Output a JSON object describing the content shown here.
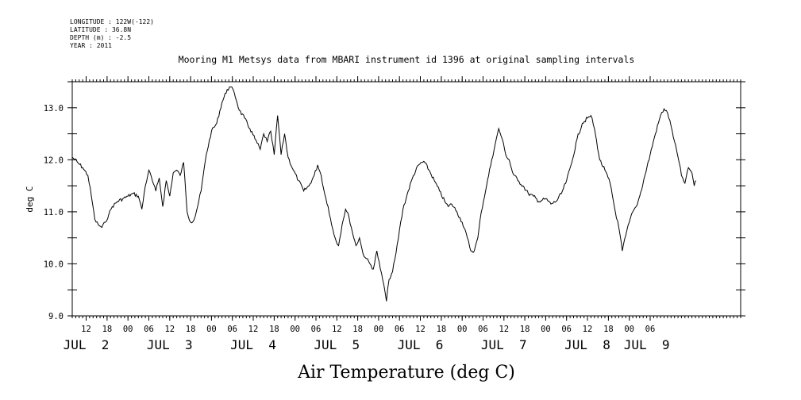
{
  "header": {
    "longitude": "LONGITUDE : 122W(-122)",
    "latitude": "LATITUDE : 36.8N",
    "depth": "DEPTH (m) : -2.5",
    "year": "YEAR : 2011"
  },
  "chart_data": {
    "type": "line",
    "title": "Mooring M1 Metsys data from MBARI instrument id 1396 at original sampling intervals",
    "ylabel": "deg C",
    "xlabel": "Air Temperature (deg C)",
    "ylim": [
      9.0,
      13.5
    ],
    "yticks": [
      9.0,
      10.0,
      11.0,
      12.0,
      13.0
    ],
    "ytick_labels": [
      "9.0",
      "10.0",
      "11.0",
      "12.0",
      "13.0"
    ],
    "xlim": [
      "2011-07-01T08:00",
      "2011-07-09T08:00"
    ],
    "hour_ticks": [
      {
        "t": "2011-07-01T12:00",
        "label": "12"
      },
      {
        "t": "2011-07-01T18:00",
        "label": "18"
      },
      {
        "t": "2011-07-02T00:00",
        "label": "00"
      },
      {
        "t": "2011-07-02T06:00",
        "label": "06"
      },
      {
        "t": "2011-07-02T12:00",
        "label": "12"
      },
      {
        "t": "2011-07-02T18:00",
        "label": "18"
      },
      {
        "t": "2011-07-03T00:00",
        "label": "00"
      },
      {
        "t": "2011-07-03T06:00",
        "label": "06"
      },
      {
        "t": "2011-07-03T12:00",
        "label": "12"
      },
      {
        "t": "2011-07-03T18:00",
        "label": "18"
      },
      {
        "t": "2011-07-04T00:00",
        "label": "00"
      },
      {
        "t": "2011-07-04T06:00",
        "label": "06"
      },
      {
        "t": "2011-07-04T12:00",
        "label": "12"
      },
      {
        "t": "2011-07-04T18:00",
        "label": "18"
      },
      {
        "t": "2011-07-05T00:00",
        "label": "00"
      },
      {
        "t": "2011-07-05T06:00",
        "label": "06"
      },
      {
        "t": "2011-07-05T12:00",
        "label": "12"
      },
      {
        "t": "2011-07-05T18:00",
        "label": "18"
      },
      {
        "t": "2011-07-06T00:00",
        "label": "00"
      },
      {
        "t": "2011-07-06T06:00",
        "label": "06"
      },
      {
        "t": "2011-07-06T12:00",
        "label": "12"
      },
      {
        "t": "2011-07-06T18:00",
        "label": "18"
      },
      {
        "t": "2011-07-07T00:00",
        "label": "00"
      },
      {
        "t": "2011-07-07T06:00",
        "label": "06"
      },
      {
        "t": "2011-07-07T12:00",
        "label": "12"
      },
      {
        "t": "2011-07-07T18:00",
        "label": "18"
      },
      {
        "t": "2011-07-08T00:00",
        "label": "00"
      },
      {
        "t": "2011-07-08T06:00",
        "label": "06"
      }
    ],
    "date_ticks": [
      {
        "t": "2011-07-01T12:00",
        "label": "JUL  2"
      },
      {
        "t": "2011-07-02T12:00",
        "label": "JUL  3"
      },
      {
        "t": "2011-07-03T12:00",
        "label": "JUL  4"
      },
      {
        "t": "2011-07-04T12:00",
        "label": "JUL  5"
      },
      {
        "t": "2011-07-05T12:00",
        "label": "JUL  6"
      },
      {
        "t": "2011-07-06T12:00",
        "label": "JUL  7"
      },
      {
        "t": "2011-07-07T12:00",
        "label": "JUL  8"
      },
      {
        "t": "2011-07-08T05:00",
        "label": "JUL  9"
      }
    ],
    "series": [
      {
        "line_color": "#000000",
        "points": [
          [
            "2011-07-01T08:00",
            12.05
          ],
          [
            "2011-07-01T09:30",
            11.95
          ],
          [
            "2011-07-01T11:00",
            11.85
          ],
          [
            "2011-07-01T12:30",
            11.7
          ],
          [
            "2011-07-01T13:30",
            11.3
          ],
          [
            "2011-07-01T14:30",
            10.85
          ],
          [
            "2011-07-01T15:30",
            10.75
          ],
          [
            "2011-07-01T16:30",
            10.7
          ],
          [
            "2011-07-01T17:30",
            10.8
          ],
          [
            "2011-07-01T18:30",
            10.95
          ],
          [
            "2011-07-01T19:30",
            11.1
          ],
          [
            "2011-07-01T21:00",
            11.2
          ],
          [
            "2011-07-01T22:30",
            11.25
          ],
          [
            "2011-07-02T00:00",
            11.3
          ],
          [
            "2011-07-02T01:30",
            11.35
          ],
          [
            "2011-07-02T03:00",
            11.3
          ],
          [
            "2011-07-02T04:00",
            11.05
          ],
          [
            "2011-07-02T05:00",
            11.5
          ],
          [
            "2011-07-02T06:00",
            11.8
          ],
          [
            "2011-07-02T07:00",
            11.6
          ],
          [
            "2011-07-02T08:00",
            11.4
          ],
          [
            "2011-07-02T09:00",
            11.65
          ],
          [
            "2011-07-02T10:00",
            11.1
          ],
          [
            "2011-07-02T11:00",
            11.6
          ],
          [
            "2011-07-02T12:00",
            11.3
          ],
          [
            "2011-07-02T13:00",
            11.75
          ],
          [
            "2011-07-02T14:00",
            11.8
          ],
          [
            "2011-07-02T15:00",
            11.7
          ],
          [
            "2011-07-02T16:00",
            11.95
          ],
          [
            "2011-07-02T17:00",
            11.0
          ],
          [
            "2011-07-02T18:00",
            10.8
          ],
          [
            "2011-07-02T19:00",
            10.85
          ],
          [
            "2011-07-02T20:00",
            11.1
          ],
          [
            "2011-07-02T21:00",
            11.4
          ],
          [
            "2011-07-02T22:30",
            12.1
          ],
          [
            "2011-07-03T00:00",
            12.55
          ],
          [
            "2011-07-03T01:30",
            12.7
          ],
          [
            "2011-07-03T03:00",
            13.1
          ],
          [
            "2011-07-03T04:30",
            13.35
          ],
          [
            "2011-07-03T05:30",
            13.4
          ],
          [
            "2011-07-03T06:30",
            13.3
          ],
          [
            "2011-07-03T08:00",
            12.95
          ],
          [
            "2011-07-03T09:30",
            12.8
          ],
          [
            "2011-07-03T11:00",
            12.6
          ],
          [
            "2011-07-03T12:30",
            12.4
          ],
          [
            "2011-07-03T14:00",
            12.2
          ],
          [
            "2011-07-03T15:00",
            12.5
          ],
          [
            "2011-07-03T16:00",
            12.35
          ],
          [
            "2011-07-03T17:00",
            12.55
          ],
          [
            "2011-07-03T18:00",
            12.1
          ],
          [
            "2011-07-03T19:00",
            12.85
          ],
          [
            "2011-07-03T20:00",
            12.1
          ],
          [
            "2011-07-03T21:00",
            12.5
          ],
          [
            "2011-07-03T22:00",
            12.05
          ],
          [
            "2011-07-03T23:30",
            11.8
          ],
          [
            "2011-07-04T01:00",
            11.6
          ],
          [
            "2011-07-04T02:30",
            11.4
          ],
          [
            "2011-07-04T04:00",
            11.5
          ],
          [
            "2011-07-04T05:30",
            11.7
          ],
          [
            "2011-07-04T06:30",
            11.9
          ],
          [
            "2011-07-04T07:30",
            11.7
          ],
          [
            "2011-07-04T08:30",
            11.35
          ],
          [
            "2011-07-04T09:30",
            11.1
          ],
          [
            "2011-07-04T10:30",
            10.75
          ],
          [
            "2011-07-04T11:30",
            10.5
          ],
          [
            "2011-07-04T12:30",
            10.35
          ],
          [
            "2011-07-04T13:30",
            10.75
          ],
          [
            "2011-07-04T14:30",
            11.05
          ],
          [
            "2011-07-04T15:30",
            10.9
          ],
          [
            "2011-07-04T16:30",
            10.6
          ],
          [
            "2011-07-04T17:30",
            10.35
          ],
          [
            "2011-07-04T18:30",
            10.5
          ],
          [
            "2011-07-04T19:30",
            10.2
          ],
          [
            "2011-07-04T20:30",
            10.1
          ],
          [
            "2011-07-04T21:30",
            10.0
          ],
          [
            "2011-07-04T22:30",
            9.9
          ],
          [
            "2011-07-04T23:30",
            10.25
          ],
          [
            "2011-07-05T00:30",
            9.9
          ],
          [
            "2011-07-05T01:30",
            9.6
          ],
          [
            "2011-07-05T02:15",
            9.28
          ],
          [
            "2011-07-05T03:00",
            9.7
          ],
          [
            "2011-07-05T04:00",
            9.85
          ],
          [
            "2011-07-05T05:00",
            10.2
          ],
          [
            "2011-07-05T06:00",
            10.65
          ],
          [
            "2011-07-05T07:00",
            11.05
          ],
          [
            "2011-07-05T08:30",
            11.4
          ],
          [
            "2011-07-05T10:00",
            11.7
          ],
          [
            "2011-07-05T11:30",
            11.9
          ],
          [
            "2011-07-05T13:00",
            11.97
          ],
          [
            "2011-07-05T14:30",
            11.8
          ],
          [
            "2011-07-05T16:00",
            11.6
          ],
          [
            "2011-07-05T17:30",
            11.4
          ],
          [
            "2011-07-05T19:00",
            11.2
          ],
          [
            "2011-07-05T20:00",
            11.1
          ],
          [
            "2011-07-05T21:00",
            11.15
          ],
          [
            "2011-07-05T22:30",
            11.0
          ],
          [
            "2011-07-06T00:00",
            10.8
          ],
          [
            "2011-07-06T01:30",
            10.5
          ],
          [
            "2011-07-06T02:30",
            10.25
          ],
          [
            "2011-07-06T03:30",
            10.25
          ],
          [
            "2011-07-06T04:30",
            10.5
          ],
          [
            "2011-07-06T05:30",
            11.0
          ],
          [
            "2011-07-06T07:00",
            11.5
          ],
          [
            "2011-07-06T08:30",
            12.0
          ],
          [
            "2011-07-06T09:30",
            12.3
          ],
          [
            "2011-07-06T10:30",
            12.6
          ],
          [
            "2011-07-06T11:30",
            12.4
          ],
          [
            "2011-07-06T12:30",
            12.1
          ],
          [
            "2011-07-06T13:30",
            12.0
          ],
          [
            "2011-07-06T14:30",
            11.75
          ],
          [
            "2011-07-06T16:00",
            11.6
          ],
          [
            "2011-07-06T17:30",
            11.5
          ],
          [
            "2011-07-06T19:00",
            11.35
          ],
          [
            "2011-07-06T20:30",
            11.3
          ],
          [
            "2011-07-06T22:00",
            11.2
          ],
          [
            "2011-07-07T00:00",
            11.25
          ],
          [
            "2011-07-07T01:30",
            11.15
          ],
          [
            "2011-07-07T03:00",
            11.2
          ],
          [
            "2011-07-07T04:30",
            11.35
          ],
          [
            "2011-07-07T06:00",
            11.6
          ],
          [
            "2011-07-07T07:30",
            11.95
          ],
          [
            "2011-07-07T09:00",
            12.4
          ],
          [
            "2011-07-07T10:30",
            12.7
          ],
          [
            "2011-07-07T12:00",
            12.8
          ],
          [
            "2011-07-07T13:00",
            12.85
          ],
          [
            "2011-07-07T14:00",
            12.6
          ],
          [
            "2011-07-07T15:30",
            12.0
          ],
          [
            "2011-07-07T17:00",
            11.8
          ],
          [
            "2011-07-07T18:30",
            11.55
          ],
          [
            "2011-07-07T20:00",
            11.0
          ],
          [
            "2011-07-07T21:00",
            10.7
          ],
          [
            "2011-07-07T22:00",
            10.25
          ],
          [
            "2011-07-07T23:00",
            10.55
          ],
          [
            "2011-07-08T00:00",
            10.8
          ],
          [
            "2011-07-08T01:00",
            11.0
          ],
          [
            "2011-07-08T02:00",
            11.1
          ],
          [
            "2011-07-08T03:00",
            11.3
          ],
          [
            "2011-07-08T04:30",
            11.7
          ],
          [
            "2011-07-08T06:00",
            12.1
          ],
          [
            "2011-07-08T07:30",
            12.5
          ],
          [
            "2011-07-08T09:00",
            12.85
          ],
          [
            "2011-07-08T10:00",
            12.98
          ],
          [
            "2011-07-08T11:00",
            12.9
          ],
          [
            "2011-07-08T12:00",
            12.65
          ],
          [
            "2011-07-08T13:00",
            12.35
          ],
          [
            "2011-07-08T14:00",
            12.05
          ],
          [
            "2011-07-08T15:00",
            11.7
          ],
          [
            "2011-07-08T16:00",
            11.55
          ],
          [
            "2011-07-08T17:00",
            11.85
          ],
          [
            "2011-07-08T18:00",
            11.75
          ],
          [
            "2011-07-08T18:40",
            11.5
          ],
          [
            "2011-07-08T19:10",
            11.6
          ]
        ]
      }
    ]
  }
}
